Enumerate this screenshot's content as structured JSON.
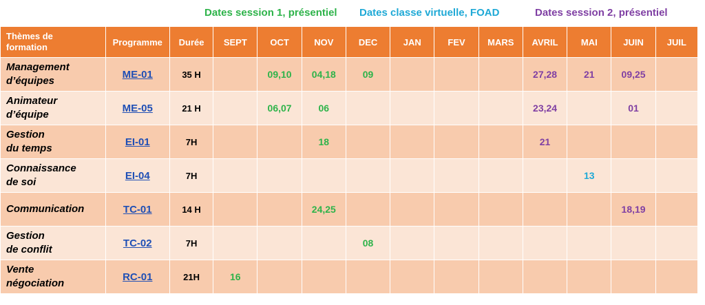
{
  "legend": {
    "session1": "Dates session 1, présentiel",
    "virtual": "Dates classe virtuelle, FOAD",
    "session2": "Dates session 2, présentiel"
  },
  "colors": {
    "header_bg": "#ed7d31",
    "session1": "#2eb34a",
    "virtual": "#1fa9d6",
    "session2": "#7f3fa3",
    "link": "#1f4fb5"
  },
  "headers": {
    "theme_line1": "Thèmes de",
    "theme_line2": "formation",
    "programme": "Programme",
    "duree": "Durée",
    "months": [
      "SEPT",
      "OCT",
      "NOV",
      "DEC",
      "JAN",
      "FEV",
      "MARS",
      "AVRIL",
      "MAI",
      "JUIN",
      "JUIL"
    ]
  },
  "rows": [
    {
      "theme_line1": "Management",
      "theme_line2": "d’équipes",
      "programme": "ME-01",
      "duree": "35 H",
      "months": [
        "",
        "09,10",
        "04,18",
        "09",
        "",
        "",
        "",
        "27,28",
        "21",
        "09,25",
        ""
      ],
      "types": [
        "",
        "c1",
        "c1",
        "c1",
        "",
        "",
        "",
        "c2",
        "c2",
        "c2",
        ""
      ]
    },
    {
      "theme_line1": "Animateur",
      "theme_line2": "d’équipe",
      "programme": "ME-05",
      "duree": "21 H",
      "months": [
        "",
        "06,07",
        "06",
        "",
        "",
        "",
        "",
        "23,24",
        "",
        "01",
        ""
      ],
      "types": [
        "",
        "c1",
        "c1",
        "",
        "",
        "",
        "",
        "c2",
        "",
        "c2",
        ""
      ]
    },
    {
      "theme_line1": "Gestion",
      "theme_line2": "du temps",
      "programme": "EI-01",
      "duree": "7H",
      "months": [
        "",
        "",
        "18",
        "",
        "",
        "",
        "",
        "21",
        "",
        "",
        ""
      ],
      "types": [
        "",
        "",
        "c1",
        "",
        "",
        "",
        "",
        "c2",
        "",
        "",
        ""
      ]
    },
    {
      "theme_line1": "Connaissance",
      "theme_line2": "de soi",
      "programme": "EI-04",
      "duree": "7H",
      "months": [
        "",
        "",
        "",
        "",
        "",
        "",
        "",
        "",
        "13",
        "",
        ""
      ],
      "types": [
        "",
        "",
        "",
        "",
        "",
        "",
        "",
        "",
        "cv",
        "",
        ""
      ]
    },
    {
      "theme_line1": "Communication",
      "theme_line2": "",
      "programme": "TC-01",
      "duree": "14 H",
      "months": [
        "",
        "",
        "24,25",
        "",
        "",
        "",
        "",
        "",
        "",
        "18,19",
        ""
      ],
      "types": [
        "",
        "",
        "c1",
        "",
        "",
        "",
        "",
        "",
        "",
        "c2",
        ""
      ]
    },
    {
      "theme_line1": "Gestion",
      "theme_line2": "de conflit",
      "programme": "TC-02",
      "duree": "7H",
      "months": [
        "",
        "",
        "",
        "08",
        "",
        "",
        "",
        "",
        "",
        "",
        ""
      ],
      "types": [
        "",
        "",
        "",
        "c1",
        "",
        "",
        "",
        "",
        "",
        "",
        ""
      ]
    },
    {
      "theme_line1": "Vente",
      "theme_line2": "négociation",
      "programme": "RC-01",
      "duree": "21H",
      "months": [
        "16",
        "",
        "",
        "",
        "",
        "",
        "",
        "",
        "",
        "",
        ""
      ],
      "types": [
        "c1",
        "",
        "",
        "",
        "",
        "",
        "",
        "",
        "",
        "",
        ""
      ]
    }
  ]
}
